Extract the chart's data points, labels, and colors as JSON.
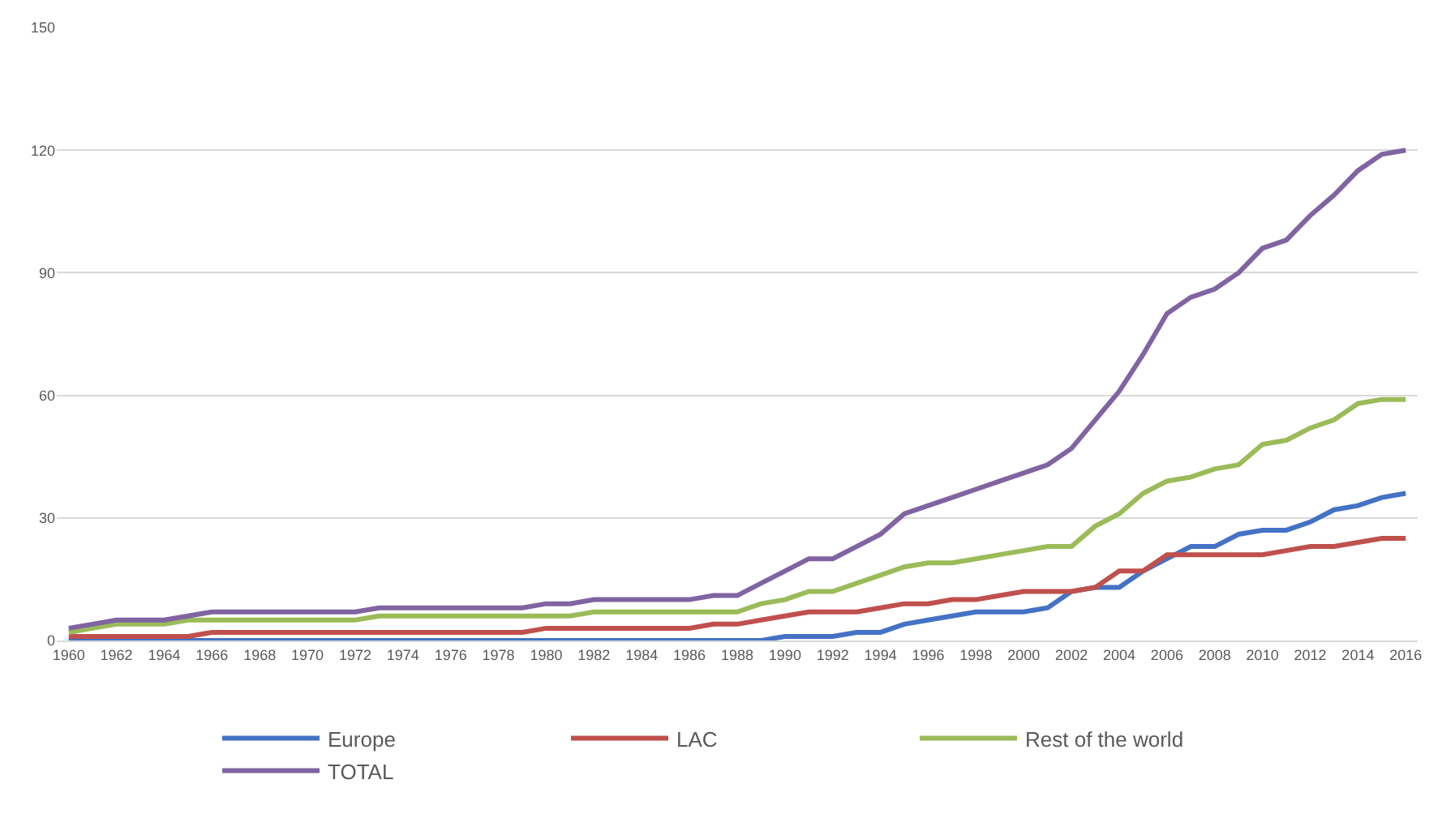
{
  "chart_data": {
    "type": "line",
    "xlim": [
      1959.5,
      2016.5
    ],
    "ylim": [
      0,
      150
    ],
    "yticks": [
      0,
      30,
      60,
      90,
      120,
      150
    ],
    "xticks": [
      1960,
      1962,
      1964,
      1966,
      1968,
      1970,
      1972,
      1974,
      1976,
      1978,
      1980,
      1982,
      1984,
      1986,
      1988,
      1990,
      1992,
      1994,
      1996,
      1998,
      2000,
      2002,
      2004,
      2006,
      2008,
      2010,
      2012,
      2014,
      2016
    ],
    "x": [
      1960,
      1961,
      1962,
      1963,
      1964,
      1965,
      1966,
      1967,
      1968,
      1969,
      1970,
      1971,
      1972,
      1973,
      1974,
      1975,
      1976,
      1977,
      1978,
      1979,
      1980,
      1981,
      1982,
      1983,
      1984,
      1985,
      1986,
      1987,
      1988,
      1989,
      1990,
      1991,
      1992,
      1993,
      1994,
      1995,
      1996,
      1997,
      1998,
      1999,
      2000,
      2001,
      2002,
      2003,
      2004,
      2005,
      2006,
      2007,
      2008,
      2009,
      2010,
      2011,
      2012,
      2013,
      2014,
      2015,
      2016
    ],
    "grid": "y",
    "legend": "bottom",
    "marker": "none",
    "line_style": "solid",
    "series": [
      {
        "name": "Europe",
        "color": "#4472c4",
        "values": [
          0,
          0,
          0,
          0,
          0,
          0,
          0,
          0,
          0,
          0,
          0,
          0,
          0,
          0,
          0,
          0,
          0,
          0,
          0,
          0,
          0,
          0,
          0,
          0,
          0,
          0,
          0,
          0,
          0,
          0,
          1,
          1,
          1,
          2,
          2,
          4,
          5,
          6,
          7,
          7,
          7,
          8,
          12,
          13,
          13,
          17,
          20,
          23,
          23,
          26,
          27,
          27,
          29,
          32,
          33,
          35,
          36
        ]
      },
      {
        "name": "LAC",
        "color": "#c0504d",
        "values": [
          1,
          1,
          1,
          1,
          1,
          1,
          2,
          2,
          2,
          2,
          2,
          2,
          2,
          2,
          2,
          2,
          2,
          2,
          2,
          2,
          3,
          3,
          3,
          3,
          3,
          3,
          3,
          4,
          4,
          5,
          6,
          7,
          7,
          7,
          8,
          9,
          9,
          10,
          10,
          11,
          12,
          12,
          12,
          13,
          17,
          17,
          21,
          21,
          21,
          21,
          21,
          22,
          23,
          23,
          24,
          25,
          25
        ]
      },
      {
        "name": "Rest of the world",
        "color": "#9bbb59",
        "values": [
          2,
          3,
          4,
          4,
          4,
          5,
          5,
          5,
          5,
          5,
          5,
          5,
          5,
          6,
          6,
          6,
          6,
          6,
          6,
          6,
          6,
          6,
          7,
          7,
          7,
          7,
          7,
          7,
          7,
          9,
          10,
          12,
          12,
          14,
          16,
          18,
          19,
          19,
          20,
          21,
          22,
          23,
          23,
          28,
          31,
          36,
          39,
          40,
          42,
          43,
          48,
          49,
          52,
          54,
          58,
          59,
          59
        ]
      },
      {
        "name": "TOTAL",
        "color": "#8064a2",
        "values": [
          3,
          4,
          5,
          5,
          5,
          6,
          7,
          7,
          7,
          7,
          7,
          7,
          7,
          8,
          8,
          8,
          8,
          8,
          8,
          8,
          9,
          9,
          10,
          10,
          10,
          10,
          10,
          11,
          11,
          14,
          17,
          20,
          20,
          23,
          26,
          31,
          33,
          35,
          37,
          39,
          41,
          43,
          47,
          54,
          61,
          70,
          80,
          84,
          86,
          90,
          96,
          98,
          104,
          109,
          115,
          119,
          120
        ]
      }
    ]
  }
}
